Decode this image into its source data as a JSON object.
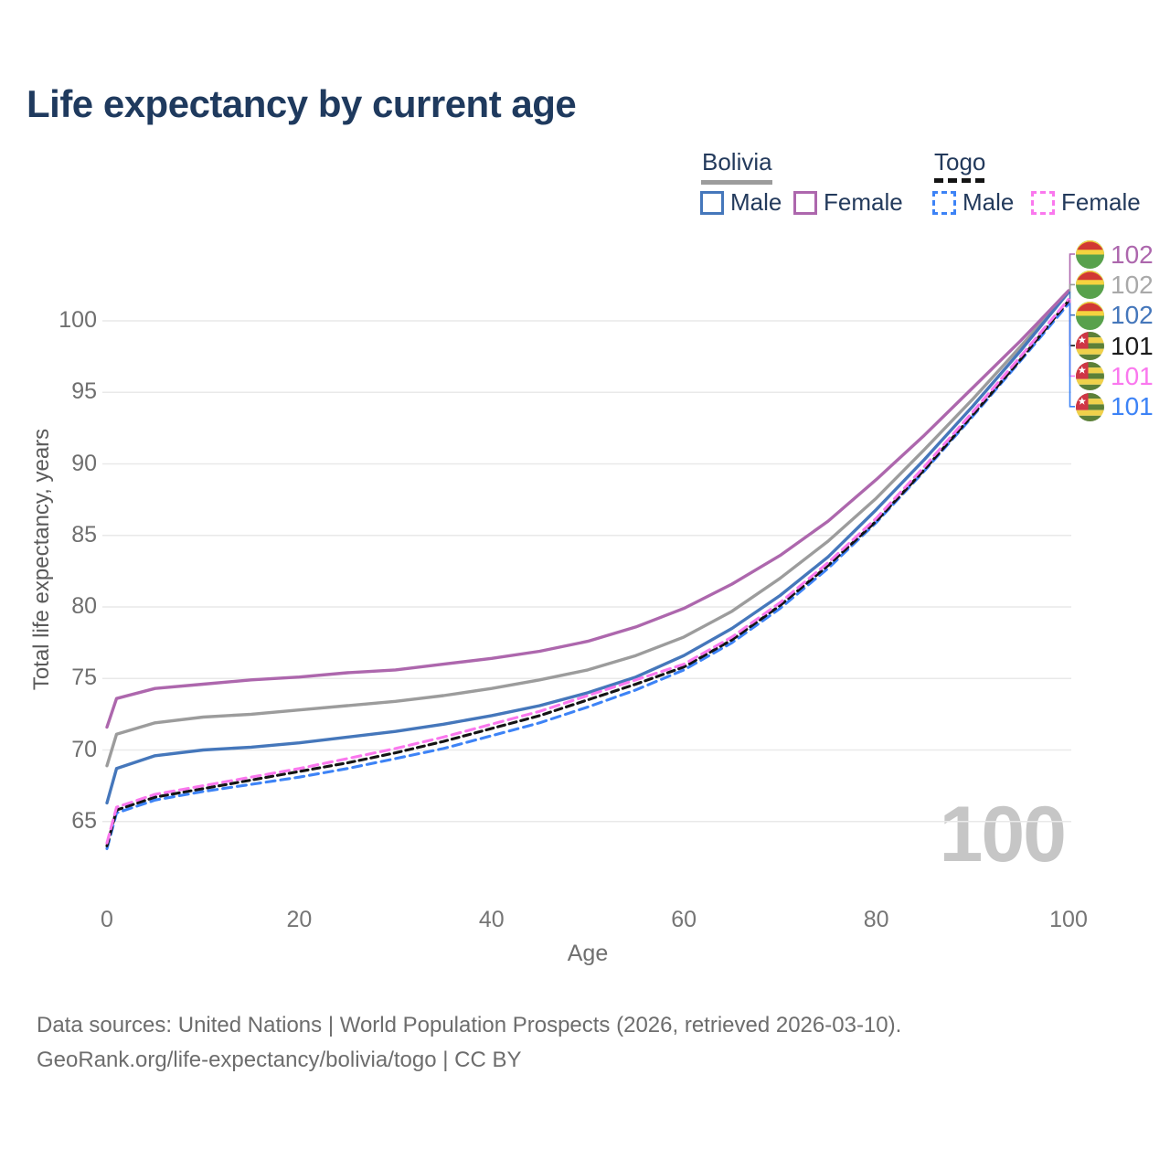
{
  "chart_data": {
    "type": "line",
    "title": "Life expectancy by current age",
    "xlabel": "Age",
    "ylabel": "Total life expectancy, years",
    "watermark": "100",
    "xticks": [
      0,
      20,
      40,
      60,
      80,
      100
    ],
    "yticks": [
      65,
      70,
      75,
      80,
      85,
      90,
      95,
      100
    ],
    "xlim": [
      0,
      100
    ],
    "ylim": [
      62.5,
      103
    ],
    "grid": "horizontal-only",
    "legend_position": "top-right",
    "x": [
      0,
      1,
      5,
      10,
      15,
      20,
      25,
      30,
      35,
      40,
      45,
      50,
      55,
      60,
      65,
      70,
      75,
      80,
      85,
      90,
      95,
      100
    ],
    "series": [
      {
        "name": "Bolivia Female",
        "country": "Bolivia",
        "sex": "female",
        "style": "solid",
        "color": "#ad67ad",
        "label_color": "#ad67ad",
        "flag": "bolivia",
        "end_label": "102",
        "end_row": 0,
        "values": [
          71.6,
          73.6,
          74.3,
          74.6,
          74.9,
          75.1,
          75.4,
          75.6,
          76.0,
          76.4,
          76.9,
          77.6,
          78.6,
          79.9,
          81.6,
          83.6,
          86.0,
          88.9,
          92.0,
          95.3,
          98.6,
          102.1
        ]
      },
      {
        "name": "Bolivia Both sexes",
        "country": "Bolivia",
        "sex": "both",
        "style": "solid",
        "color": "#9c9c9c",
        "label_color": "#a9a9a9",
        "flag": "bolivia",
        "end_label": "102",
        "end_row": 1,
        "values": [
          68.9,
          71.1,
          71.9,
          72.3,
          72.5,
          72.8,
          73.1,
          73.4,
          73.8,
          74.3,
          74.9,
          75.6,
          76.6,
          77.9,
          79.7,
          82.0,
          84.6,
          87.6,
          91.0,
          94.5,
          98.2,
          102.0
        ]
      },
      {
        "name": "Bolivia Male",
        "country": "Bolivia",
        "sex": "male",
        "style": "solid",
        "color": "#4577bb",
        "label_color": "#4577bb",
        "flag": "bolivia",
        "end_label": "102",
        "end_row": 2,
        "values": [
          66.3,
          68.7,
          69.6,
          70.0,
          70.2,
          70.5,
          70.9,
          71.3,
          71.8,
          72.4,
          73.1,
          74.0,
          75.1,
          76.6,
          78.5,
          80.8,
          83.5,
          86.8,
          90.3,
          94.0,
          97.9,
          102.0
        ]
      },
      {
        "name": "Togo Both sexes",
        "country": "Togo",
        "sex": "both",
        "style": "dashed",
        "color": "#141414",
        "label_color": "#1b1b1b",
        "flag": "togo",
        "end_label": "101",
        "end_row": 3,
        "values": [
          63.3,
          65.8,
          66.7,
          67.3,
          67.9,
          68.5,
          69.1,
          69.8,
          70.6,
          71.5,
          72.4,
          73.5,
          74.6,
          75.8,
          77.7,
          80.1,
          82.9,
          86.0,
          89.6,
          93.4,
          97.3,
          101.4
        ]
      },
      {
        "name": "Togo Female",
        "country": "Togo",
        "sex": "female",
        "style": "dashed",
        "color": "#fa78ee",
        "label_color": "#fa78ee",
        "flag": "togo",
        "end_label": "101",
        "end_row": 4,
        "values": [
          63.5,
          66.0,
          66.9,
          67.5,
          68.1,
          68.7,
          69.4,
          70.1,
          70.9,
          71.8,
          72.7,
          73.8,
          74.9,
          76.0,
          77.9,
          80.3,
          83.1,
          86.2,
          89.8,
          93.6,
          97.5,
          101.5
        ]
      },
      {
        "name": "Togo Male",
        "country": "Togo",
        "sex": "male",
        "style": "dashed",
        "color": "#3d83f6",
        "label_color": "#3d83f6",
        "flag": "togo",
        "end_label": "101",
        "end_row": 5,
        "values": [
          63.1,
          65.6,
          66.5,
          67.1,
          67.6,
          68.1,
          68.7,
          69.4,
          70.1,
          71.0,
          71.9,
          73.0,
          74.2,
          75.6,
          77.5,
          79.9,
          82.7,
          85.9,
          89.5,
          93.3,
          97.2,
          101.2
        ]
      }
    ]
  },
  "legend": {
    "groups": [
      {
        "country": "Bolivia",
        "line_style": "solid",
        "line_color": "#9c9c9c",
        "items": [
          {
            "label": "Male",
            "color": "#4577bb"
          },
          {
            "label": "Female",
            "color": "#ad67ad"
          }
        ]
      },
      {
        "country": "Togo",
        "line_style": "dashed",
        "line_color": "#141414",
        "items": [
          {
            "label": "Male",
            "color": "#3d83f6"
          },
          {
            "label": "Female",
            "color": "#fa78ee"
          }
        ]
      }
    ]
  },
  "footer": {
    "line1": "Data sources: United Nations | World Population Prospects (2026, retrieved 2026-03-10).",
    "line2": "GeoRank.org/life-expectancy/bolivia/togo | CC BY"
  },
  "colors": {
    "title": "#1f3a5e",
    "gridline": "#e9e9e9",
    "axis_text": "#6f6f6f",
    "watermark": "#c6c6c6",
    "bolivia_flag": {
      "red": "#d13834",
      "yellow": "#f5d33f",
      "green": "#58a14c"
    },
    "togo_flag": {
      "green": "#5c8038",
      "yellow": "#f0d14b",
      "red": "#cf3545",
      "star": "#ffffff"
    }
  }
}
